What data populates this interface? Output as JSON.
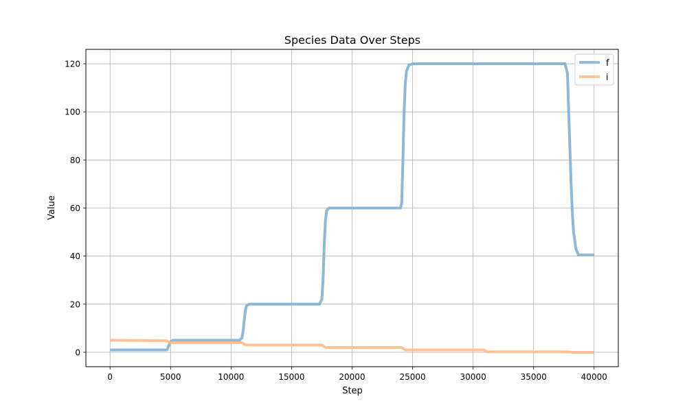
{
  "chart_data": {
    "type": "line",
    "title": "Species Data Over Steps",
    "xlabel": "Step",
    "ylabel": "Value",
    "xlim": [
      -2000,
      42000
    ],
    "ylim": [
      -6,
      126
    ],
    "xticks": [
      0,
      5000,
      10000,
      15000,
      20000,
      25000,
      30000,
      35000,
      40000
    ],
    "xtick_labels": [
      "0",
      "5000",
      "10000",
      "15000",
      "20000",
      "25000",
      "30000",
      "35000",
      "40000"
    ],
    "yticks": [
      0,
      20,
      40,
      60,
      80,
      100,
      120
    ],
    "ytick_labels": [
      "0",
      "20",
      "40",
      "60",
      "80",
      "100",
      "120"
    ],
    "grid": true,
    "legend_position": "top-right",
    "series": [
      {
        "name": "f",
        "color": "#7fb0d5",
        "x": [
          0,
          4700,
          4800,
          4900,
          5000,
          5200,
          10700,
          10900,
          11000,
          11100,
          11200,
          11300,
          11500,
          17300,
          17500,
          17600,
          17700,
          17800,
          17900,
          18100,
          24000,
          24100,
          24200,
          24300,
          24400,
          24500,
          24700,
          25000,
          37600,
          37800,
          37900,
          38000,
          38100,
          38200,
          38300,
          38500,
          38700,
          40000
        ],
        "values": [
          1,
          1,
          2,
          3.5,
          4.5,
          5,
          5,
          6,
          9,
          14,
          18,
          19.5,
          20,
          20,
          22,
          30,
          45,
          55,
          59,
          60,
          60,
          62,
          80,
          100,
          112,
          117,
          119.5,
          120,
          120,
          116,
          100,
          85,
          70,
          58,
          50,
          43,
          40.5,
          40.5
        ]
      },
      {
        "name": "i",
        "color": "#ffbb88",
        "x": [
          0,
          4700,
          5000,
          10900,
          11200,
          17500,
          17800,
          24100,
          24400,
          30900,
          31200,
          37600,
          38200,
          40000
        ],
        "values": [
          5,
          4.8,
          4,
          4,
          3,
          3,
          2,
          2,
          1,
          1,
          0.2,
          0.2,
          0,
          0
        ]
      }
    ]
  }
}
